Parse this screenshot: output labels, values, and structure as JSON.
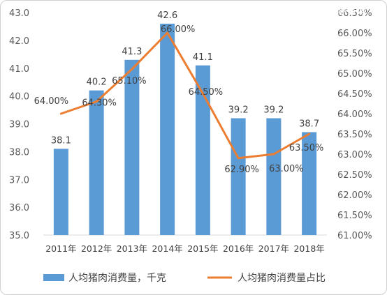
{
  "watermark": "搜狐号@中金企信国际咨询",
  "chart_data": {
    "type": "bar",
    "categories": [
      "2011年",
      "2012年",
      "2013年",
      "2014年",
      "2015年",
      "2016年",
      "2017年",
      "2018年"
    ],
    "series": [
      {
        "name": "人均猪肉消费量，千克",
        "type": "bar",
        "axis": "left",
        "values": [
          38.1,
          40.2,
          41.3,
          42.6,
          41.1,
          39.2,
          39.2,
          38.7
        ],
        "labels": [
          "38.1",
          "40.2",
          "41.3",
          "42.6",
          "41.1",
          "39.2",
          "39.2",
          "38.7"
        ],
        "color": "#5b9bd5"
      },
      {
        "name": "人均猪肉消费量占比",
        "type": "line",
        "axis": "right",
        "values": [
          64.0,
          64.3,
          65.1,
          66.0,
          64.5,
          62.9,
          63.0,
          63.5
        ],
        "labels": [
          "64.00%",
          "64.30%",
          "65.10%",
          "66.00%",
          "64.50%",
          "62.90%",
          "63.00%",
          "63.50%"
        ],
        "color": "#ed7d31"
      }
    ],
    "y_left": {
      "min": 35.0,
      "max": 43.0,
      "ticks": [
        "35.0",
        "36.0",
        "37.0",
        "38.0",
        "39.0",
        "40.0",
        "41.0",
        "42.0",
        "43.0"
      ]
    },
    "y_right": {
      "min": 61.0,
      "max": 66.5,
      "ticks": [
        "61.00%",
        "61.50%",
        "62.00%",
        "62.50%",
        "63.00%",
        "63.50%",
        "64.00%",
        "64.50%",
        "65.00%",
        "65.50%",
        "66.00%",
        "66.50%"
      ]
    },
    "legend_position": "bottom",
    "grid": false
  }
}
